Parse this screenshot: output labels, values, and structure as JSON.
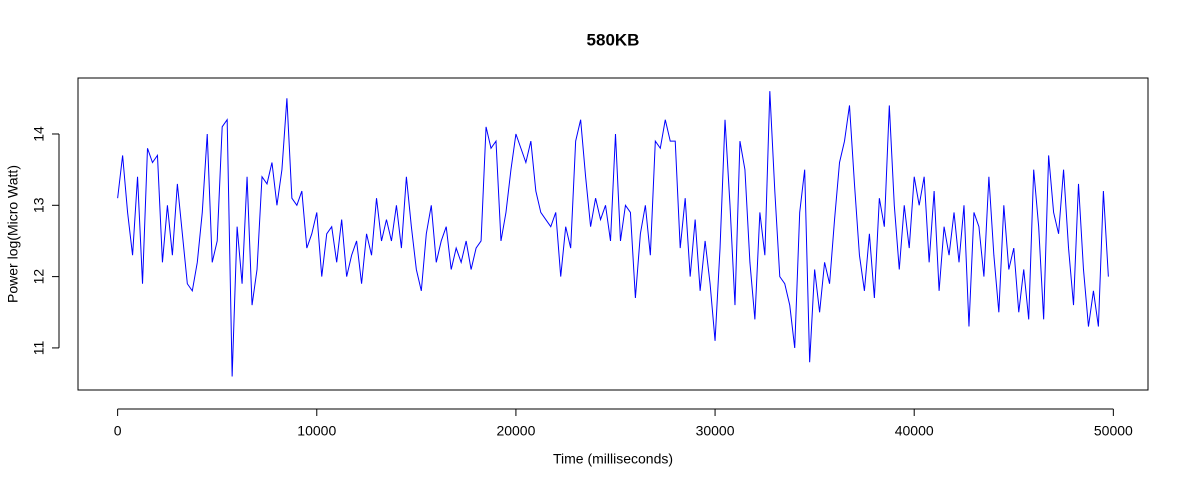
{
  "chart_data": {
    "type": "line",
    "title": "580KB",
    "x_label": "Time (milliseconds)",
    "y_label": "Power log(Micro Watt)",
    "series": [
      {
        "color": "#0000ff",
        "x": [
          0,
          250,
          500,
          750,
          1000,
          1250,
          1500,
          1750,
          2000,
          2250,
          2500,
          2750,
          3000,
          3250,
          3500,
          3750,
          4000,
          4250,
          4500,
          4750,
          5000,
          5250,
          5500,
          5750,
          6000,
          6250,
          6500,
          6750,
          7000,
          7250,
          7500,
          7750,
          8000,
          8250,
          8500,
          8750,
          9000,
          9250,
          9500,
          9750,
          10000,
          10250,
          10500,
          10750,
          11000,
          11250,
          11500,
          11750,
          12000,
          12250,
          12500,
          12750,
          13000,
          13250,
          13500,
          13750,
          14000,
          14250,
          14500,
          14750,
          15000,
          15250,
          15500,
          15750,
          16000,
          16250,
          16500,
          16750,
          17000,
          17250,
          17500,
          17750,
          18000,
          18250,
          18500,
          18750,
          19000,
          19250,
          19500,
          19750,
          20000,
          20250,
          20500,
          20750,
          21000,
          21250,
          21500,
          21750,
          22000,
          22250,
          22500,
          22750,
          23000,
          23250,
          23500,
          23750,
          24000,
          24250,
          24500,
          24750,
          25000,
          25250,
          25500,
          25750,
          26000,
          26250,
          26500,
          26750,
          27000,
          27250,
          27500,
          27750,
          28000,
          28250,
          28500,
          28750,
          29000,
          29250,
          29500,
          29750,
          30000,
          30250,
          30500,
          30750,
          31000,
          31250,
          31500,
          31750,
          32000,
          32250,
          32500,
          32750,
          33000,
          33250,
          33500,
          33750,
          34000,
          34250,
          34500,
          34750,
          35000,
          35250,
          35500,
          35750,
          36000,
          36250,
          36500,
          36750,
          37000,
          37250,
          37500,
          37750,
          38000,
          38250,
          38500,
          38750,
          39000,
          39250,
          39500,
          39750,
          40000,
          40250,
          40500,
          40750,
          41000,
          41250,
          41500,
          41750,
          42000,
          42250,
          42500,
          42750,
          43000,
          43250,
          43500,
          43750,
          44000,
          44250,
          44500,
          44750,
          45000,
          45250,
          45500,
          45750,
          46000,
          46250,
          46500,
          46750,
          47000,
          47250,
          47500,
          47750,
          48000,
          48250,
          48500,
          48750,
          49000,
          49250,
          49500,
          49750
        ],
        "values": [
          13.1,
          13.7,
          12.9,
          12.3,
          13.4,
          11.9,
          13.8,
          13.6,
          13.7,
          12.2,
          13.0,
          12.3,
          13.3,
          12.6,
          11.9,
          11.8,
          12.2,
          12.9,
          14.0,
          12.2,
          12.5,
          14.1,
          14.2,
          10.6,
          12.7,
          11.9,
          13.4,
          11.6,
          12.1,
          13.4,
          13.3,
          13.6,
          13.0,
          13.5,
          14.5,
          13.1,
          13.0,
          13.2,
          12.4,
          12.6,
          12.9,
          12.0,
          12.6,
          12.7,
          12.2,
          12.8,
          12.0,
          12.3,
          12.5,
          11.9,
          12.6,
          12.3,
          13.1,
          12.5,
          12.8,
          12.5,
          13.0,
          12.4,
          13.4,
          12.7,
          12.1,
          11.8,
          12.6,
          13.0,
          12.2,
          12.5,
          12.7,
          12.1,
          12.4,
          12.2,
          12.5,
          12.1,
          12.4,
          12.5,
          14.1,
          13.8,
          13.9,
          12.5,
          12.9,
          13.5,
          14.0,
          13.8,
          13.6,
          13.9,
          13.2,
          12.9,
          12.8,
          12.7,
          12.9,
          12.0,
          12.7,
          12.4,
          13.9,
          14.2,
          13.4,
          12.7,
          13.1,
          12.8,
          13.0,
          12.5,
          14.0,
          12.5,
          13.0,
          12.9,
          11.7,
          12.6,
          13.0,
          12.3,
          13.9,
          13.8,
          14.2,
          13.9,
          13.9,
          12.4,
          13.1,
          12.0,
          12.8,
          11.8,
          12.5,
          11.9,
          11.1,
          12.4,
          14.2,
          13.0,
          11.6,
          13.9,
          13.5,
          12.2,
          11.4,
          12.9,
          12.3,
          14.6,
          13.2,
          12.0,
          11.9,
          11.6,
          11.0,
          12.9,
          13.5,
          10.8,
          12.1,
          11.5,
          12.2,
          11.9,
          12.8,
          13.6,
          13.9,
          14.4,
          13.3,
          12.3,
          11.8,
          12.6,
          11.7,
          13.1,
          12.7,
          14.4,
          13.0,
          12.1,
          13.0,
          12.4,
          13.4,
          13.0,
          13.4,
          12.2,
          13.2,
          11.8,
          12.7,
          12.3,
          12.9,
          12.2,
          13.0,
          11.3,
          12.9,
          12.7,
          12.0,
          13.4,
          12.3,
          11.5,
          13.0,
          12.1,
          12.4,
          11.5,
          12.1,
          11.4,
          13.5,
          12.7,
          11.4,
          13.7,
          12.9,
          12.6,
          13.5,
          12.4,
          11.6,
          13.3,
          12.1,
          11.3,
          11.8,
          11.3,
          13.2,
          12.0
        ]
      }
    ],
    "xlim": [
      -1990,
      51740
    ],
    "xticks": [
      0,
      10000,
      20000,
      30000,
      40000,
      50000
    ],
    "ylim": [
      10.41,
      14.785
    ],
    "yticks": [
      11,
      12,
      13,
      14
    ]
  }
}
